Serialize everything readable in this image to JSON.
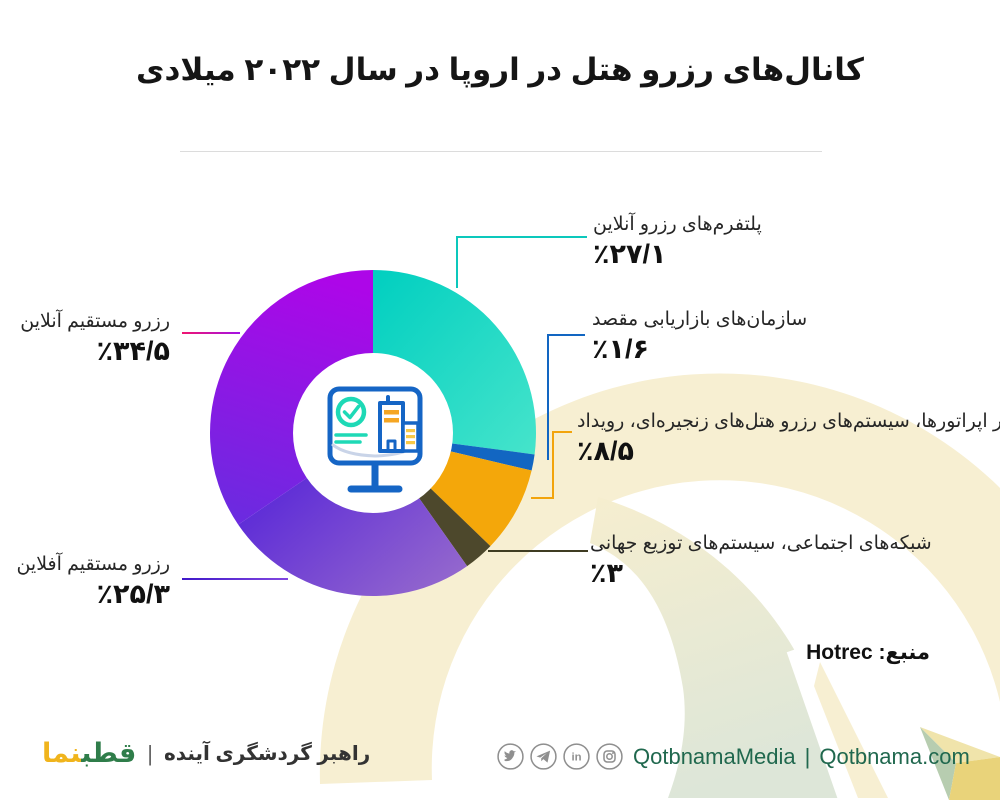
{
  "title": "کانال‌های رزرو هتل در اروپا در سال ۲۰۲۲ میلادی",
  "chart_data": {
    "type": "pie",
    "style": "donut",
    "title": "کانال‌های رزرو هتل در اروپا در سال ۲۰۲۲ میلادی",
    "unit": "percent",
    "total": 100,
    "start_angle_deg": 0,
    "direction": "clockwise",
    "segments": [
      {
        "label": "پلتفرم‌های رزرو آنلاین",
        "value": 27.1,
        "display": "٪۲۷/۱",
        "color_from": "#00cfc0",
        "color_to": "#46e4cb",
        "line_color": "#0cc8bc"
      },
      {
        "label": "سازمان‌های بازاریابی مقصد",
        "value": 1.6,
        "display": "٪۱/۶",
        "color_from": "#1266c2",
        "color_to": "#1266c2",
        "line_color": "#1266c2"
      },
      {
        "label": "تور اپراتورها، سیستم‌های رزرو هتل‌های زنجیره‌ای، رویداد",
        "value": 8.5,
        "display": "٪۸/۵",
        "color_from": "#f4a70a",
        "color_to": "#f4a70a",
        "line_color": "#f2a40c"
      },
      {
        "label": "شبکه‌های اجتماعی، سیستم‌های توزیع جهانی",
        "value": 3,
        "display": "٪۳",
        "color_from": "#4d482c",
        "color_to": "#4d482c",
        "line_color": "#3f3c22"
      },
      {
        "label": "رزرو مستقیم آفلاین",
        "value": 25.3,
        "display": "٪۲۵/۳",
        "color_from": "#9468cd",
        "color_to": "#5a28d8",
        "line_color": "#3f18c9",
        "line_color_2": "#8247e0"
      },
      {
        "label": "رزرو مستقیم آنلاین",
        "value": 34.5,
        "display": "٪۳۴/۵",
        "color_from": "#6c2ae0",
        "color_to": "#ad06e8",
        "line_color": "#f01570",
        "line_color_2": "#a312e6"
      }
    ]
  },
  "source": {
    "label": "منبع:",
    "value": "Hotrec"
  },
  "footer": {
    "logo_part_green": "قطب",
    "logo_part_yellow": "نما",
    "pipe": "|",
    "tagline": "راهبر گردشگری آینده",
    "social_icons": [
      "twitter-icon",
      "telegram-icon",
      "linkedin-icon",
      "instagram-icon"
    ],
    "handle_media": "QotbnamaMedia",
    "handle_site": "Qotbnama.com"
  },
  "theme": {
    "background": "#ffffff",
    "cream": "#f7efd2",
    "sage": "#dde6d8",
    "kite_cream": "#f0e4ab",
    "kite_sage": "#b7cdb0",
    "kite_yellow": "#e9d37a",
    "divider": "#dcdcdc",
    "footer_green": "#20684e",
    "icon_gray": "#8f8f8f",
    "logo_green": "#2f7d4a",
    "logo_yellow": "#f0b41c",
    "icon_blue": "#1565c5",
    "icon_teal": "#1ed9b6",
    "icon_orange": "#f5a623",
    "icon_lightyellow": "#f7c948"
  }
}
